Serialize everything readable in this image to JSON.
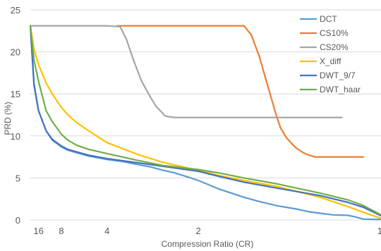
{
  "chart_data": {
    "type": "line",
    "title": "",
    "xlabel": "Compression Ratio (CR)",
    "ylabel": "PRD (%)",
    "xscale": "reciprocal",
    "xlim": [
      1,
      25
    ],
    "ylim": [
      0,
      25
    ],
    "grid": true,
    "legend_position": "right",
    "x_ticks": [
      16,
      8,
      4,
      2,
      1
    ],
    "y_ticks": [
      0,
      5,
      10,
      15,
      20,
      25
    ],
    "series": [
      {
        "name": "DCT",
        "color": "#5B9BD5",
        "x": [
          25,
          20,
          16,
          12,
          10,
          8,
          7,
          6,
          5,
          4,
          3.5,
          3,
          2.7,
          2.5,
          2.3,
          2.1,
          2,
          1.8,
          1.6,
          1.5,
          1.4,
          1.3,
          1.25,
          1.2,
          1.15,
          1.1,
          1.08,
          1.05,
          1.0
        ],
        "y": [
          23.1,
          16,
          13,
          10.6,
          9.5,
          8.7,
          8.3,
          8.0,
          7.6,
          7.2,
          7.0,
          6.6,
          6.3,
          5.95,
          5.6,
          5.05,
          4.7,
          3.7,
          2.7,
          2.2,
          1.7,
          1.3,
          1.0,
          0.8,
          0.6,
          0.55,
          0.4,
          0.1,
          0.05
        ]
      },
      {
        "name": "CS10%",
        "color": "#ED7D31",
        "x": [
          3.6,
          3.0,
          2.0,
          1.6,
          1.55,
          1.5,
          1.45,
          1.42,
          1.4,
          1.38,
          1.35,
          1.32,
          1.3,
          1.27,
          1.25,
          1.22,
          1.2,
          1.05
        ],
        "y": [
          23.1,
          23.1,
          23.1,
          23.1,
          22.0,
          19.5,
          16.0,
          13.8,
          12.3,
          11.0,
          9.8,
          9.0,
          8.5,
          8.0,
          7.75,
          7.5,
          7.5,
          7.5
        ]
      },
      {
        "name": "CS20%",
        "color": "#A5A5A5",
        "x": [
          25,
          10,
          4.0,
          3.5,
          3.3,
          3.1,
          2.9,
          2.7,
          2.6,
          2.5,
          2.45,
          2.4,
          2.3,
          2.2,
          1.6,
          1.3,
          1.12
        ],
        "y": [
          23.1,
          23.1,
          23.1,
          23.0,
          21.5,
          19.0,
          16.5,
          14.5,
          13.5,
          12.8,
          12.4,
          12.3,
          12.2,
          12.2,
          12.2,
          12.2,
          12.2
        ]
      },
      {
        "name": "X_diff",
        "color": "#FFC000",
        "x": [
          25,
          20,
          16,
          12,
          10,
          8,
          7,
          6,
          5,
          4,
          3,
          2.5,
          2,
          1.8,
          1.6,
          1.4,
          1.2,
          1.1,
          1.05,
          1.0
        ],
        "y": [
          23.1,
          20.3,
          18.5,
          16.3,
          15.0,
          13.4,
          12.5,
          11.6,
          10.6,
          9.2,
          7.8,
          6.9,
          5.9,
          5.3,
          4.7,
          4.0,
          2.7,
          1.6,
          0.9,
          0.2
        ]
      },
      {
        "name": "DWT_9/7",
        "color": "#4472C4",
        "x": [
          25,
          20,
          16,
          12,
          10,
          8,
          7,
          6,
          5,
          4,
          3,
          2.5,
          2,
          1.8,
          1.6,
          1.4,
          1.2,
          1.1,
          1.05,
          1.0
        ],
        "y": [
          23.1,
          16.2,
          13.0,
          10.6,
          9.6,
          8.8,
          8.4,
          8.1,
          7.7,
          7.3,
          6.8,
          6.4,
          5.8,
          5.2,
          4.5,
          3.8,
          2.9,
          2.1,
          1.5,
          0.5
        ]
      },
      {
        "name": "DWT_haar",
        "color": "#70AD47",
        "x": [
          25,
          20,
          16,
          12,
          10,
          8,
          7,
          6,
          5,
          4,
          3,
          2.5,
          2,
          1.8,
          1.6,
          1.4,
          1.2,
          1.1,
          1.05,
          1.0
        ],
        "y": [
          23.1,
          19.0,
          16.5,
          13.0,
          11.7,
          10.2,
          9.5,
          8.9,
          8.4,
          7.9,
          7.1,
          6.5,
          6.0,
          5.6,
          5.0,
          4.3,
          3.2,
          2.4,
          1.7,
          0.6
        ]
      }
    ]
  }
}
